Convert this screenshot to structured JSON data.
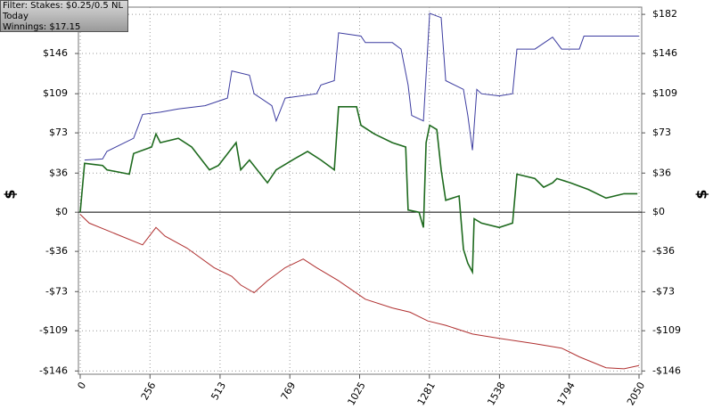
{
  "chart_data": {
    "type": "line",
    "annotations": [
      "Filter: Stakes: $0.25/0.5 NL",
      "Today",
      "Winnings: $17.15"
    ],
    "ylabel": "$",
    "xlim": [
      0,
      2050
    ],
    "xticks": [
      0,
      256,
      513,
      769,
      1025,
      1281,
      1538,
      1794,
      2050
    ],
    "ylim": [
      -149,
      187
    ],
    "yticks": [
      {
        "value": 182,
        "label": "$182"
      },
      {
        "value": 146,
        "label": "$146"
      },
      {
        "value": 109,
        "label": "$109"
      },
      {
        "value": 73,
        "label": "$73"
      },
      {
        "value": 36,
        "label": "$36"
      },
      {
        "value": 0,
        "label": "$0"
      },
      {
        "value": -36,
        "label": "-$36"
      },
      {
        "value": -73,
        "label": "-$73"
      },
      {
        "value": -109,
        "label": "-$109"
      },
      {
        "value": -146,
        "label": "-$146"
      }
    ],
    "grid": true,
    "series": [
      {
        "color": "#3c3ca0",
        "x": [
          16,
          82,
          98,
          196,
          229,
          294,
          360,
          458,
          540,
          556,
          621,
          638,
          703,
          719,
          752,
          867,
          883,
          932,
          948,
          1030,
          1046,
          1145,
          1177,
          1203,
          1216,
          1259,
          1269,
          1282,
          1324,
          1341,
          1406,
          1422,
          1439,
          1455,
          1472,
          1537,
          1586,
          1602,
          1668,
          1733,
          1766,
          1831,
          1848,
          2050
        ],
        "values": [
          48,
          49,
          56,
          68,
          90,
          92,
          95,
          98,
          105,
          130,
          126,
          109,
          98,
          84,
          105,
          109,
          117,
          121,
          165,
          162,
          156,
          156,
          150,
          117,
          89,
          84,
          126,
          183,
          179,
          121,
          113,
          89,
          57,
          113,
          109,
          107,
          109,
          150,
          150,
          161,
          150,
          150,
          162,
          162
        ]
      },
      {
        "color": "#1e6a1e",
        "x": [
          0,
          16,
          82,
          98,
          180,
          196,
          229,
          262,
          278,
          294,
          360,
          409,
          474,
          507,
          572,
          589,
          621,
          687,
          719,
          785,
          834,
          883,
          932,
          948,
          1014,
          1030,
          1079,
          1145,
          1194,
          1203,
          1243,
          1259,
          1269,
          1282,
          1308,
          1324,
          1341,
          1390,
          1406,
          1422,
          1439,
          1445,
          1472,
          1537,
          1586,
          1602,
          1668,
          1700,
          1733,
          1749,
          1799,
          1864,
          1929,
          1995,
          2044
        ],
        "values": [
          0,
          45,
          43,
          39,
          35,
          54,
          57,
          60,
          72,
          64,
          68,
          60,
          39,
          43,
          64,
          39,
          48,
          27,
          39,
          49,
          56,
          48,
          39,
          97,
          97,
          80,
          72,
          64,
          60,
          2,
          0,
          -14,
          64,
          80,
          76,
          39,
          11,
          15,
          -34,
          -47,
          -55,
          -6,
          -10,
          -14,
          -10,
          35,
          31,
          23,
          27,
          31,
          27,
          21,
          13,
          17,
          17
        ]
      },
      {
        "color": "#b03030",
        "x": [
          0,
          33,
          131,
          229,
          278,
          311,
          392,
          491,
          556,
          589,
          638,
          687,
          752,
          818,
          867,
          948,
          1046,
          1145,
          1210,
          1275,
          1341,
          1439,
          1537,
          1668,
          1766,
          1831,
          1929,
          1995,
          2050
        ],
        "values": [
          -2,
          -10,
          -20,
          -30,
          -14,
          -22,
          -33,
          -51,
          -59,
          -67,
          -74,
          -63,
          -51,
          -43,
          -51,
          -63,
          -80,
          -88,
          -92,
          -100,
          -104,
          -112,
          -116,
          -121,
          -125,
          -133,
          -143,
          -144,
          -141
        ]
      }
    ]
  }
}
